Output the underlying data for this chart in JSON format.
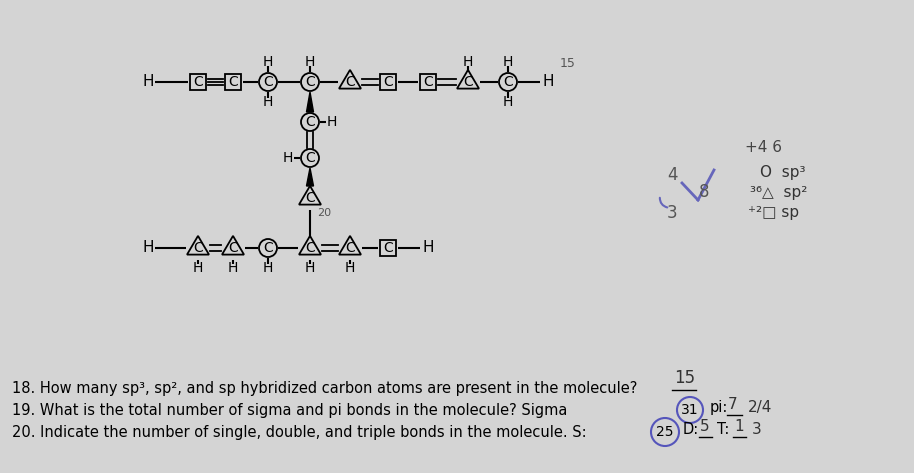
{
  "bg_color": "#d4d4d4",
  "question_18": "18. How many sp³, sp², and sp hybridized carbon atoms are present in the molecule?",
  "answer_18": "15",
  "question_19": "19. What is the total number of sigma and pi bonds in the molecule? Sigma",
  "sigma_val": "31",
  "pi_label": "pi:",
  "pi_val": "7",
  "frac_val": "2/4",
  "question_20": "20. Indicate the number of single, double, and triple bonds in the molecule. S:",
  "s_val": "25",
  "d_label": "D:",
  "d_val": "5",
  "t_label": "T:",
  "t_val": "1",
  "t_extra": "3",
  "note_p46": "+4 6",
  "note_4": "4",
  "note_8": "8",
  "note_3": "3",
  "note_sp3": "O  sp³",
  "note_sp2": "³⁶△  sp²",
  "note_sp": "⁺²□ sp"
}
